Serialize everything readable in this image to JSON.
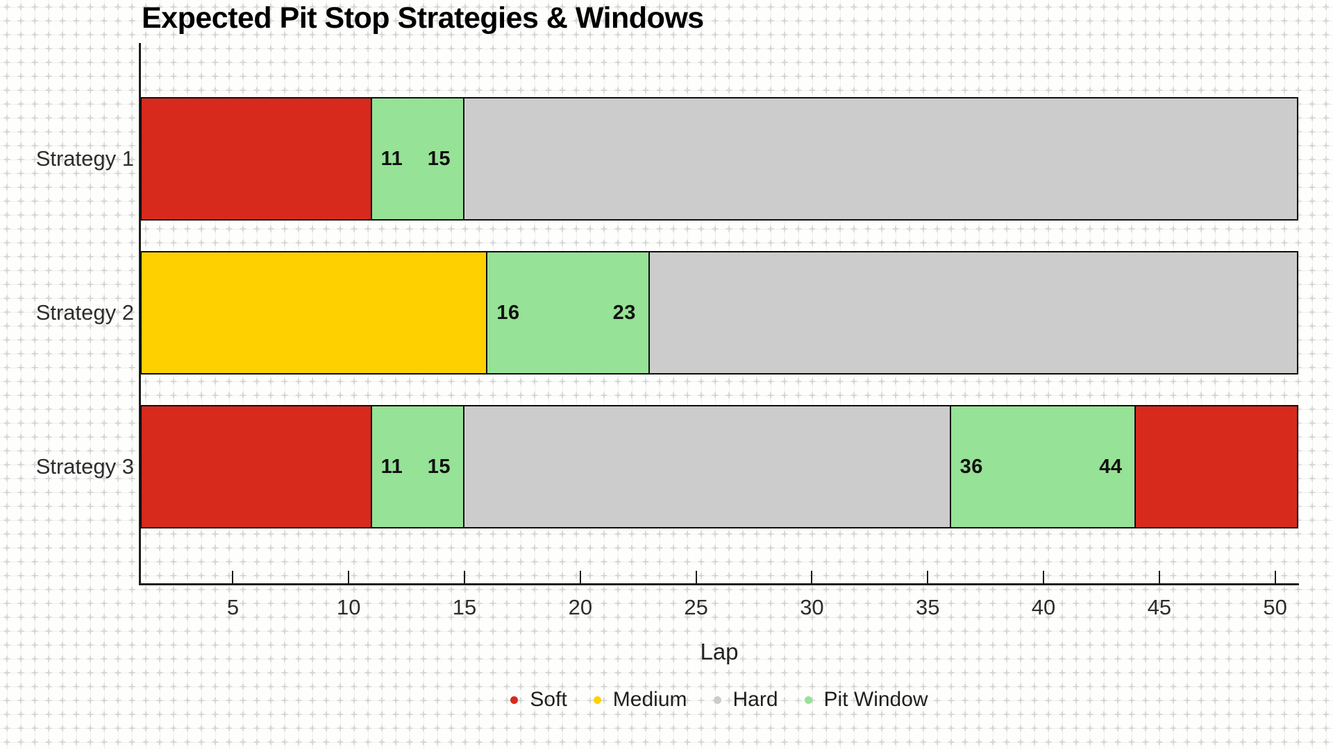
{
  "chart_data": {
    "type": "bar",
    "orientation": "horizontal-stacked",
    "title": "Expected Pit Stop Strategies & Windows",
    "xlabel": "Lap",
    "xlim": [
      1,
      51
    ],
    "x_ticks": [
      "5",
      "10",
      "15",
      "20",
      "25",
      "30",
      "35",
      "40",
      "45",
      "50"
    ],
    "categories": [
      "Strategy 1",
      "Strategy 2",
      "Strategy 3"
    ],
    "rows": [
      {
        "label": "Strategy 1",
        "segments": [
          {
            "compound": "Soft",
            "start": 1,
            "end": 11
          },
          {
            "compound": "Pit Window",
            "start": 11,
            "end": 15,
            "start_label": "11",
            "end_label": "15"
          },
          {
            "compound": "Hard",
            "start": 15,
            "end": 51
          }
        ]
      },
      {
        "label": "Strategy 2",
        "segments": [
          {
            "compound": "Medium",
            "start": 1,
            "end": 16
          },
          {
            "compound": "Pit Window",
            "start": 16,
            "end": 23,
            "start_label": "16",
            "end_label": "23"
          },
          {
            "compound": "Hard",
            "start": 23,
            "end": 51
          }
        ]
      },
      {
        "label": "Strategy 3",
        "segments": [
          {
            "compound": "Soft",
            "start": 1,
            "end": 11
          },
          {
            "compound": "Pit Window",
            "start": 11,
            "end": 15,
            "start_label": "11",
            "end_label": "15"
          },
          {
            "compound": "Hard",
            "start": 15,
            "end": 36
          },
          {
            "compound": "Pit Window",
            "start": 36,
            "end": 44,
            "start_label": "36",
            "end_label": "44"
          },
          {
            "compound": "Soft",
            "start": 44,
            "end": 51
          }
        ]
      }
    ],
    "legend": [
      "Soft",
      "Medium",
      "Hard",
      "Pit Window"
    ],
    "colors": {
      "Soft": "#d8291d",
      "Medium": "#ffd000",
      "Hard": "#cccccc",
      "Pit Window": "#96e296"
    }
  }
}
